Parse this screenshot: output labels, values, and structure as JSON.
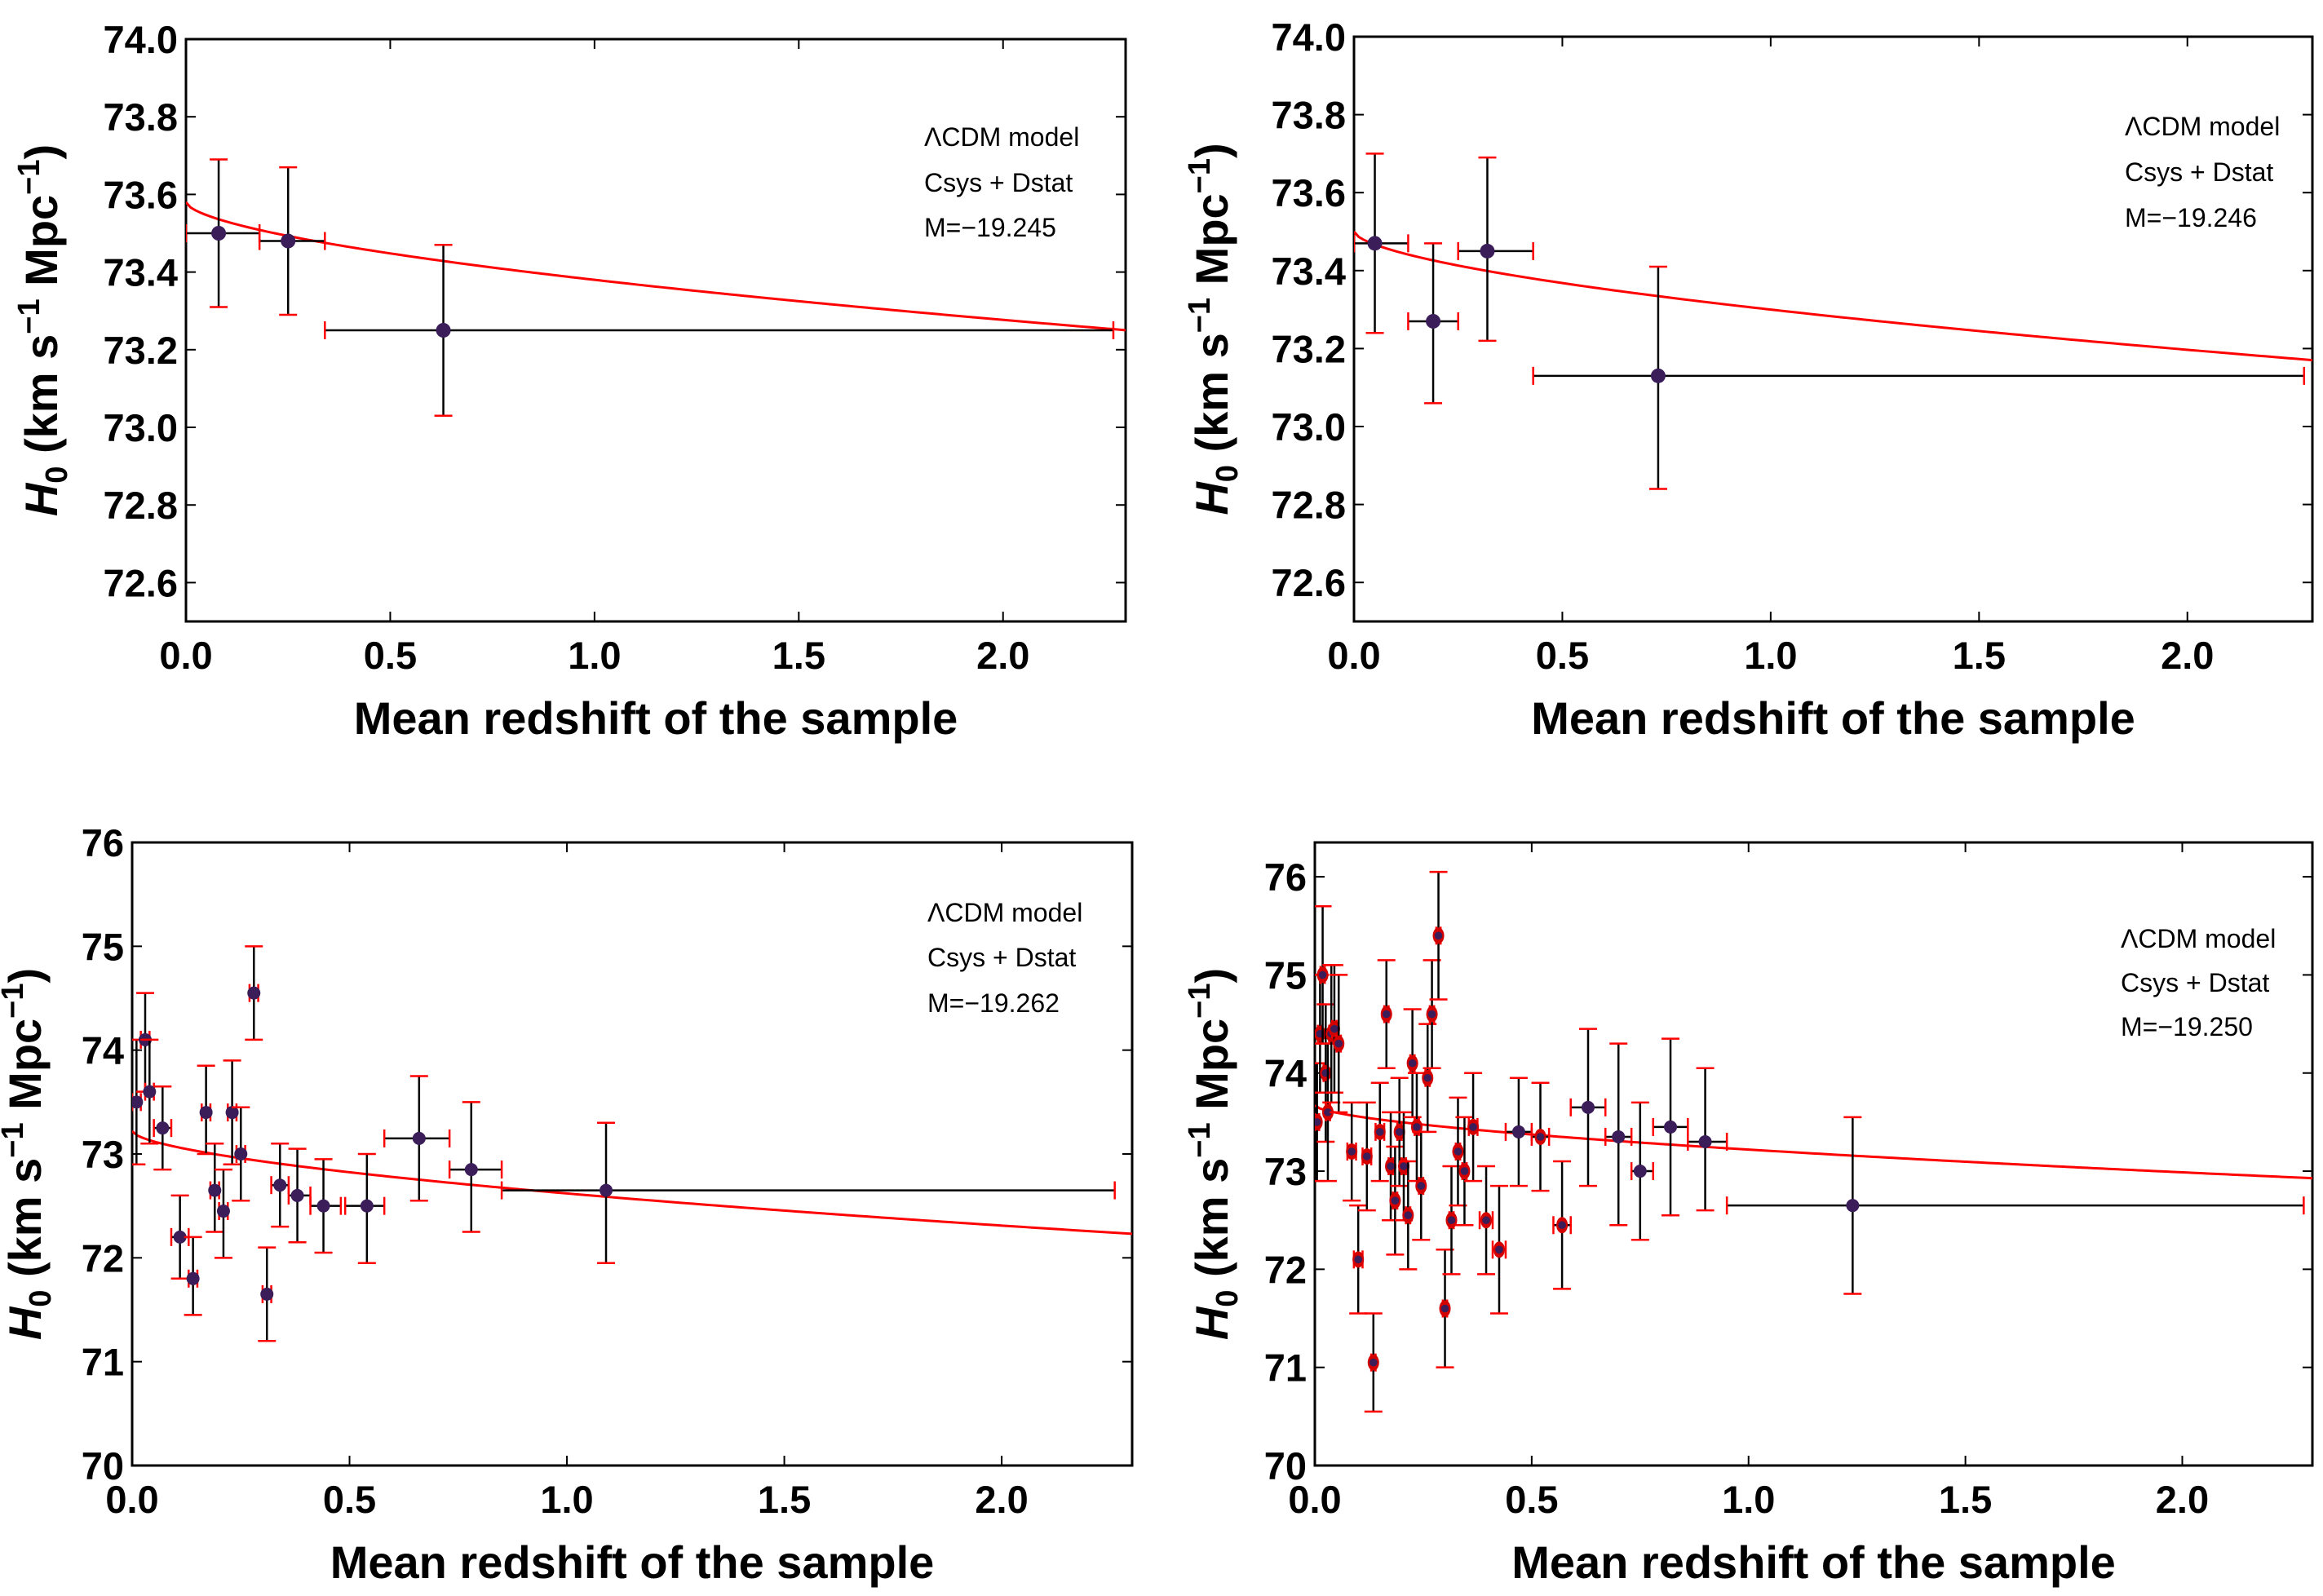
{
  "chart_data": [
    {
      "type": "scatter",
      "xlabel": "Mean redshift of the sample",
      "ylabel": "H0 (km s−1 Mpc−1)",
      "xlim": [
        0,
        2.3
      ],
      "ylim": [
        72.5,
        74.0
      ],
      "xticks": [
        "0.0",
        "0.5",
        "1.0",
        "1.5",
        "2.0"
      ],
      "xtick_values": [
        0,
        0.5,
        1.0,
        1.5,
        2.0
      ],
      "yticks": [
        "72.6",
        "72.8",
        "73.0",
        "73.2",
        "73.4",
        "73.6",
        "73.8",
        "74.0"
      ],
      "ytick_values": [
        72.6,
        72.8,
        73.0,
        73.2,
        73.4,
        73.6,
        73.8,
        74.0
      ],
      "annotations": [
        "ΛCDM model",
        "Csys + Dstat",
        "M=−19.245"
      ],
      "colors": {
        "fit": "#ff0000",
        "errorbar": "#000000",
        "cap": "#ff0000",
        "point": "#3b1d5a"
      },
      "points": [
        {
          "x": 0.08,
          "y": 73.5,
          "xlo": 0.0,
          "xhi": 0.18,
          "ylo": 73.31,
          "yhi": 73.69
        },
        {
          "x": 0.25,
          "y": 73.48,
          "xlo": 0.18,
          "xhi": 0.34,
          "ylo": 73.29,
          "yhi": 73.67
        },
        {
          "x": 0.63,
          "y": 73.25,
          "xlo": 0.34,
          "xhi": 2.27,
          "ylo": 73.03,
          "yhi": 73.47
        }
      ],
      "fit": {
        "a": 73.58,
        "b": 0.2,
        "c": 0.6
      }
    },
    {
      "type": "scatter",
      "xlabel": "Mean redshift of the sample",
      "ylabel": "H0 (km s−1 Mpc−1)",
      "xlim": [
        0,
        2.3
      ],
      "ylim": [
        72.5,
        74.0
      ],
      "xticks": [
        "0.0",
        "0.5",
        "1.0",
        "1.5",
        "2.0"
      ],
      "xtick_values": [
        0,
        0.5,
        1.0,
        1.5,
        2.0
      ],
      "yticks": [
        "72.6",
        "72.8",
        "73.0",
        "73.2",
        "73.4",
        "73.6",
        "73.8",
        "74.0"
      ],
      "ytick_values": [
        72.6,
        72.8,
        73.0,
        73.2,
        73.4,
        73.6,
        73.8,
        74.0
      ],
      "annotations": [
        "ΛCDM model",
        "Csys + Dstat",
        "M=−19.246"
      ],
      "colors": {
        "fit": "#ff0000",
        "errorbar": "#000000",
        "cap": "#ff0000",
        "point": "#3b1d5a"
      },
      "points": [
        {
          "x": 0.05,
          "y": 73.47,
          "xlo": 0.0,
          "xhi": 0.13,
          "ylo": 73.24,
          "yhi": 73.7
        },
        {
          "x": 0.19,
          "y": 73.27,
          "xlo": 0.13,
          "xhi": 0.25,
          "ylo": 73.06,
          "yhi": 73.47
        },
        {
          "x": 0.32,
          "y": 73.45,
          "xlo": 0.25,
          "xhi": 0.43,
          "ylo": 73.22,
          "yhi": 73.69
        },
        {
          "x": 0.73,
          "y": 73.13,
          "xlo": 0.43,
          "xhi": 2.28,
          "ylo": 72.84,
          "yhi": 73.41
        }
      ],
      "fit": {
        "a": 73.5,
        "b": 0.2,
        "c": 0.6
      }
    },
    {
      "type": "scatter",
      "xlabel": "Mean redshift of the sample",
      "ylabel": "H0 (km s−1 Mpc−1)",
      "xlim": [
        0,
        2.3
      ],
      "ylim": [
        70,
        76
      ],
      "xticks": [
        "0.0",
        "0.5",
        "1.0",
        "1.5",
        "2.0"
      ],
      "xtick_values": [
        0,
        0.5,
        1.0,
        1.5,
        2.0
      ],
      "yticks": [
        "70",
        "71",
        "72",
        "73",
        "74",
        "75",
        "76"
      ],
      "ytick_values": [
        70,
        71,
        72,
        73,
        74,
        75,
        76
      ],
      "annotations": [
        "ΛCDM model",
        "Csys + Dstat",
        "M=−19.262"
      ],
      "colors": {
        "fit": "#ff0000",
        "errorbar": "#000000",
        "cap": "#ff0000",
        "point": "#3b1d5a"
      },
      "points": [
        {
          "x": 0.01,
          "y": 73.5,
          "xlo": 0.0,
          "xhi": 0.02,
          "ylo": 72.9,
          "yhi": 74.1
        },
        {
          "x": 0.03,
          "y": 74.1,
          "xlo": 0.02,
          "xhi": 0.04,
          "ylo": 73.6,
          "yhi": 74.55
        },
        {
          "x": 0.04,
          "y": 73.6,
          "xlo": 0.03,
          "xhi": 0.05,
          "ylo": 73.1,
          "yhi": 74.1
        },
        {
          "x": 0.07,
          "y": 73.25,
          "xlo": 0.05,
          "xhi": 0.09,
          "ylo": 72.85,
          "yhi": 73.65
        },
        {
          "x": 0.11,
          "y": 72.2,
          "xlo": 0.09,
          "xhi": 0.13,
          "ylo": 71.8,
          "yhi": 72.6
        },
        {
          "x": 0.14,
          "y": 71.8,
          "xlo": 0.13,
          "xhi": 0.15,
          "ylo": 71.45,
          "yhi": 72.2
        },
        {
          "x": 0.17,
          "y": 73.4,
          "xlo": 0.16,
          "xhi": 0.18,
          "ylo": 73.0,
          "yhi": 73.85
        },
        {
          "x": 0.19,
          "y": 72.65,
          "xlo": 0.18,
          "xhi": 0.2,
          "ylo": 72.25,
          "yhi": 73.1
        },
        {
          "x": 0.21,
          "y": 72.45,
          "xlo": 0.2,
          "xhi": 0.22,
          "ylo": 72.0,
          "yhi": 72.85
        },
        {
          "x": 0.23,
          "y": 73.4,
          "xlo": 0.22,
          "xhi": 0.24,
          "ylo": 72.9,
          "yhi": 73.9
        },
        {
          "x": 0.25,
          "y": 73.0,
          "xlo": 0.24,
          "xhi": 0.26,
          "ylo": 72.55,
          "yhi": 73.45
        },
        {
          "x": 0.28,
          "y": 74.55,
          "xlo": 0.27,
          "xhi": 0.29,
          "ylo": 74.1,
          "yhi": 75.0
        },
        {
          "x": 0.31,
          "y": 71.65,
          "xlo": 0.3,
          "xhi": 0.32,
          "ylo": 71.2,
          "yhi": 72.1
        },
        {
          "x": 0.34,
          "y": 72.7,
          "xlo": 0.32,
          "xhi": 0.36,
          "ylo": 72.3,
          "yhi": 73.1
        },
        {
          "x": 0.38,
          "y": 72.6,
          "xlo": 0.36,
          "xhi": 0.41,
          "ylo": 72.15,
          "yhi": 73.05
        },
        {
          "x": 0.44,
          "y": 72.5,
          "xlo": 0.41,
          "xhi": 0.48,
          "ylo": 72.05,
          "yhi": 72.95
        },
        {
          "x": 0.54,
          "y": 72.5,
          "xlo": 0.49,
          "xhi": 0.58,
          "ylo": 71.95,
          "yhi": 73.0
        },
        {
          "x": 0.66,
          "y": 73.15,
          "xlo": 0.58,
          "xhi": 0.73,
          "ylo": 72.55,
          "yhi": 73.75
        },
        {
          "x": 0.78,
          "y": 72.85,
          "xlo": 0.73,
          "xhi": 0.85,
          "ylo": 72.25,
          "yhi": 73.5
        },
        {
          "x": 1.09,
          "y": 72.65,
          "xlo": 0.85,
          "xhi": 2.26,
          "ylo": 71.95,
          "yhi": 73.3
        }
      ],
      "fit": {
        "a": 73.22,
        "b": 0.6,
        "c": 0.6
      }
    },
    {
      "type": "scatter",
      "xlabel": "Mean redshift of the sample",
      "ylabel": "H0 (km s−1 Mpc−1)",
      "xlim": [
        0,
        2.3
      ],
      "ylim": [
        70,
        76.35
      ],
      "xticks": [
        "0.0",
        "0.5",
        "1.0",
        "1.5",
        "2.0"
      ],
      "xtick_values": [
        0,
        0.5,
        1.0,
        1.5,
        2.0
      ],
      "yticks": [
        "70",
        "71",
        "72",
        "73",
        "74",
        "75",
        "76"
      ],
      "ytick_values": [
        70,
        71,
        72,
        73,
        74,
        75,
        76
      ],
      "annotations": [
        "ΛCDM model",
        "Csys + Dstat",
        "M=−19.250"
      ],
      "colors": {
        "fit": "#ff0000",
        "errorbar": "#000000",
        "cap": "#ff0000",
        "point": "#3b1d5a",
        "point_small": "#d40000"
      },
      "points": [
        {
          "x": 0.005,
          "y": 73.5,
          "xlo": 0.0,
          "xhi": 0.01,
          "ylo": 72.9,
          "yhi": 74.1
        },
        {
          "x": 0.012,
          "y": 74.4,
          "xlo": 0.007,
          "xhi": 0.017,
          "ylo": 73.8,
          "yhi": 75.0
        },
        {
          "x": 0.018,
          "y": 75.0,
          "xlo": 0.013,
          "xhi": 0.023,
          "ylo": 74.3,
          "yhi": 75.7
        },
        {
          "x": 0.025,
          "y": 74.0,
          "xlo": 0.02,
          "xhi": 0.03,
          "ylo": 73.3,
          "yhi": 74.7
        },
        {
          "x": 0.03,
          "y": 73.6,
          "xlo": 0.025,
          "xhi": 0.035,
          "ylo": 72.9,
          "yhi": 74.3
        },
        {
          "x": 0.038,
          "y": 74.4,
          "xlo": 0.033,
          "xhi": 0.043,
          "ylo": 73.7,
          "yhi": 75.1
        },
        {
          "x": 0.045,
          "y": 74.45,
          "xlo": 0.04,
          "xhi": 0.05,
          "ylo": 73.8,
          "yhi": 75.1
        },
        {
          "x": 0.055,
          "y": 74.3,
          "xlo": 0.05,
          "xhi": 0.06,
          "ylo": 73.6,
          "yhi": 75.0
        },
        {
          "x": 0.085,
          "y": 73.2,
          "xlo": 0.075,
          "xhi": 0.095,
          "ylo": 72.7,
          "yhi": 73.7
        },
        {
          "x": 0.1,
          "y": 72.1,
          "xlo": 0.09,
          "xhi": 0.11,
          "ylo": 71.55,
          "yhi": 72.65
        },
        {
          "x": 0.12,
          "y": 73.15,
          "xlo": 0.11,
          "xhi": 0.13,
          "ylo": 72.6,
          "yhi": 73.7
        },
        {
          "x": 0.135,
          "y": 71.05,
          "xlo": 0.13,
          "xhi": 0.14,
          "ylo": 70.55,
          "yhi": 71.55
        },
        {
          "x": 0.15,
          "y": 73.4,
          "xlo": 0.14,
          "xhi": 0.16,
          "ylo": 72.9,
          "yhi": 73.9
        },
        {
          "x": 0.165,
          "y": 74.6,
          "xlo": 0.16,
          "xhi": 0.17,
          "ylo": 74.05,
          "yhi": 75.15
        },
        {
          "x": 0.175,
          "y": 73.05,
          "xlo": 0.17,
          "xhi": 0.18,
          "ylo": 72.5,
          "yhi": 73.6
        },
        {
          "x": 0.185,
          "y": 72.7,
          "xlo": 0.18,
          "xhi": 0.19,
          "ylo": 72.15,
          "yhi": 73.25
        },
        {
          "x": 0.195,
          "y": 73.4,
          "xlo": 0.19,
          "xhi": 0.2,
          "ylo": 72.85,
          "yhi": 73.95
        },
        {
          "x": 0.205,
          "y": 73.05,
          "xlo": 0.2,
          "xhi": 0.21,
          "ylo": 72.5,
          "yhi": 73.6
        },
        {
          "x": 0.215,
          "y": 72.55,
          "xlo": 0.21,
          "xhi": 0.22,
          "ylo": 72.0,
          "yhi": 73.1
        },
        {
          "x": 0.225,
          "y": 74.1,
          "xlo": 0.22,
          "xhi": 0.23,
          "ylo": 73.55,
          "yhi": 74.65
        },
        {
          "x": 0.235,
          "y": 73.45,
          "xlo": 0.23,
          "xhi": 0.24,
          "ylo": 72.9,
          "yhi": 74.0
        },
        {
          "x": 0.245,
          "y": 72.85,
          "xlo": 0.24,
          "xhi": 0.25,
          "ylo": 72.3,
          "yhi": 73.4
        },
        {
          "x": 0.26,
          "y": 73.95,
          "xlo": 0.255,
          "xhi": 0.265,
          "ylo": 73.4,
          "yhi": 74.5
        },
        {
          "x": 0.27,
          "y": 74.6,
          "xlo": 0.265,
          "xhi": 0.275,
          "ylo": 74.05,
          "yhi": 75.15
        },
        {
          "x": 0.285,
          "y": 75.4,
          "xlo": 0.28,
          "xhi": 0.29,
          "ylo": 74.75,
          "yhi": 76.05
        },
        {
          "x": 0.3,
          "y": 71.6,
          "xlo": 0.295,
          "xhi": 0.305,
          "ylo": 71.0,
          "yhi": 72.2
        },
        {
          "x": 0.315,
          "y": 72.5,
          "xlo": 0.31,
          "xhi": 0.32,
          "ylo": 71.95,
          "yhi": 73.05
        },
        {
          "x": 0.33,
          "y": 73.2,
          "xlo": 0.325,
          "xhi": 0.335,
          "ylo": 72.65,
          "yhi": 73.75
        },
        {
          "x": 0.345,
          "y": 73.0,
          "xlo": 0.34,
          "xhi": 0.35,
          "ylo": 72.45,
          "yhi": 73.55
        },
        {
          "x": 0.365,
          "y": 73.45,
          "xlo": 0.355,
          "xhi": 0.375,
          "ylo": 72.9,
          "yhi": 74.0
        },
        {
          "x": 0.395,
          "y": 72.5,
          "xlo": 0.38,
          "xhi": 0.41,
          "ylo": 71.95,
          "yhi": 73.05
        },
        {
          "x": 0.425,
          "y": 72.2,
          "xlo": 0.41,
          "xhi": 0.44,
          "ylo": 71.55,
          "yhi": 72.85
        },
        {
          "x": 0.47,
          "y": 73.4,
          "xlo": 0.44,
          "xhi": 0.5,
          "ylo": 72.85,
          "yhi": 73.95
        },
        {
          "x": 0.52,
          "y": 73.35,
          "xlo": 0.5,
          "xhi": 0.54,
          "ylo": 72.8,
          "yhi": 73.9
        },
        {
          "x": 0.57,
          "y": 72.45,
          "xlo": 0.55,
          "xhi": 0.59,
          "ylo": 71.8,
          "yhi": 73.1
        },
        {
          "x": 0.63,
          "y": 73.65,
          "xlo": 0.59,
          "xhi": 0.67,
          "ylo": 72.85,
          "yhi": 74.45
        },
        {
          "x": 0.7,
          "y": 73.35,
          "xlo": 0.67,
          "xhi": 0.73,
          "ylo": 72.45,
          "yhi": 74.3
        },
        {
          "x": 0.75,
          "y": 73.0,
          "xlo": 0.73,
          "xhi": 0.78,
          "ylo": 72.3,
          "yhi": 73.7
        },
        {
          "x": 0.82,
          "y": 73.45,
          "xlo": 0.78,
          "xhi": 0.86,
          "ylo": 72.55,
          "yhi": 74.35
        },
        {
          "x": 0.9,
          "y": 73.3,
          "xlo": 0.86,
          "xhi": 0.95,
          "ylo": 72.6,
          "yhi": 74.05
        },
        {
          "x": 1.24,
          "y": 72.65,
          "xlo": 0.95,
          "xhi": 2.28,
          "ylo": 71.75,
          "yhi": 73.55
        }
      ],
      "fit": {
        "a": 73.67,
        "b": 0.45,
        "c": 0.6
      }
    }
  ]
}
